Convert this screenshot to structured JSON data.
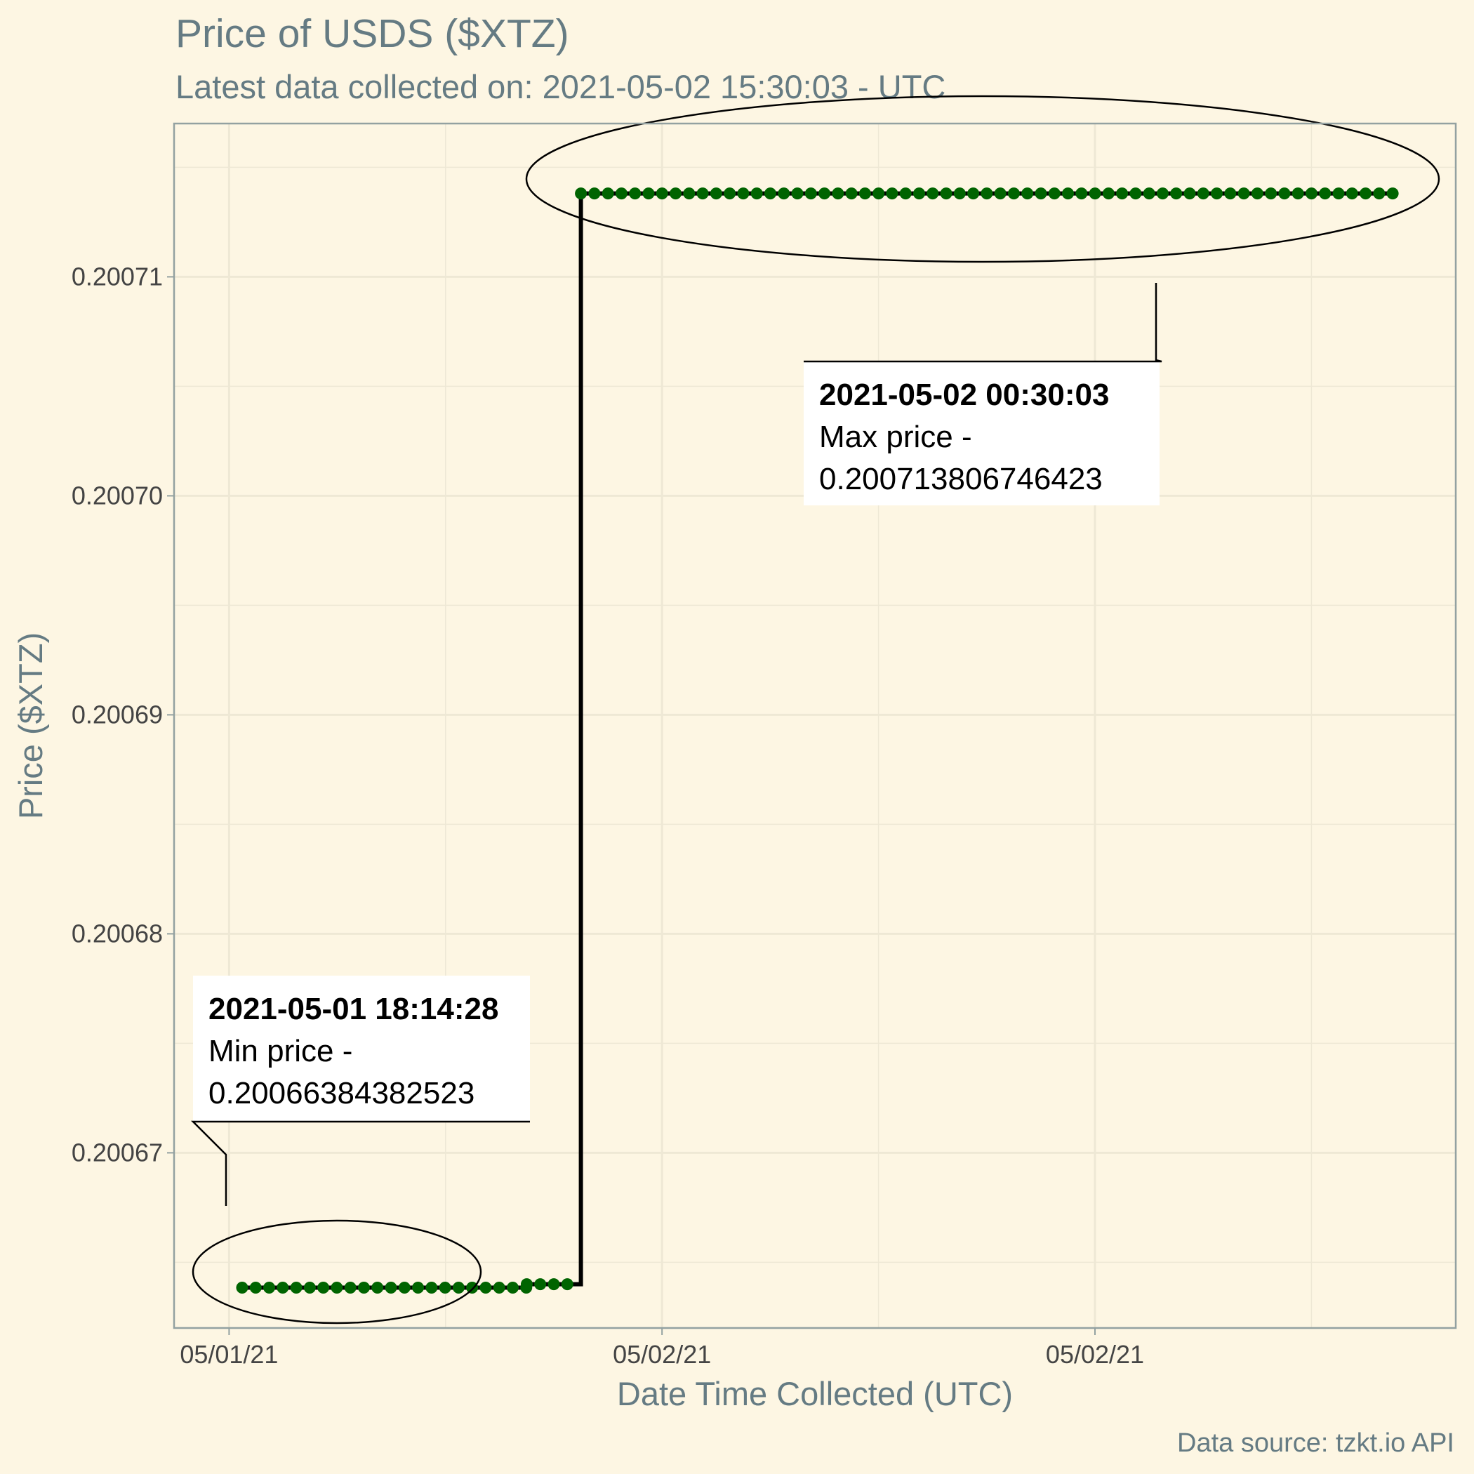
{
  "chart_data": {
    "type": "line",
    "title": "Price of USDS ($XTZ)",
    "subtitle": "Latest data collected on: 2021-05-02 15:30:03  - UTC",
    "xlabel": "Date Time Collected (UTC)",
    "ylabel": "Price ($XTZ)",
    "caption": "Data source: tzkt.io API",
    "grid": true,
    "legend": "none",
    "x_tick_labels": [
      "05/01/21",
      "05/02/21",
      "05/02/21",
      "05/02/21"
    ],
    "y_ticks": [
      0.20067,
      0.20068,
      0.20069,
      0.2007,
      0.20071
    ],
    "y_tick_labels": [
      "0.20067",
      "0.20068",
      "0.20069",
      "0.20070",
      "0.20071"
    ],
    "ylim": [
      0.200662,
      0.200717
    ],
    "xlim": [
      "2021-05-01 16:59",
      "2021-05-02 16:40"
    ],
    "series": [
      {
        "segments": [
          {
            "from": "2021-05-01 18:14:28",
            "to": "2021-05-01 23:30:00",
            "price": 0.20066384382523
          },
          {
            "from": "2021-05-01 23:30:00",
            "to": "2021-05-02 00:15:00",
            "price": 0.200664
          },
          {
            "from": "2021-05-02 00:30:03",
            "to": "2021-05-02 15:30:03",
            "price": 0.200713806746423
          }
        ],
        "step_interval_minutes": 15
      }
    ],
    "annotations": [
      {
        "time": "2021-05-01 18:14:28",
        "price": 0.20066384382523,
        "title": "2021-05-01 18:14:28",
        "lines": [
          "Min price -",
          "0.20066384382523"
        ]
      },
      {
        "time": "2021-05-02 00:30:03",
        "price": 0.200713806746423,
        "title": "2021-05-02 00:30:03",
        "lines": [
          "Max price -",
          "0.200713806746423"
        ]
      }
    ]
  },
  "colors": {
    "background": "#fdf6e3",
    "grid": "#eee8d5",
    "points": "#006400",
    "line": "#000000",
    "axis_text": "#657b83"
  }
}
